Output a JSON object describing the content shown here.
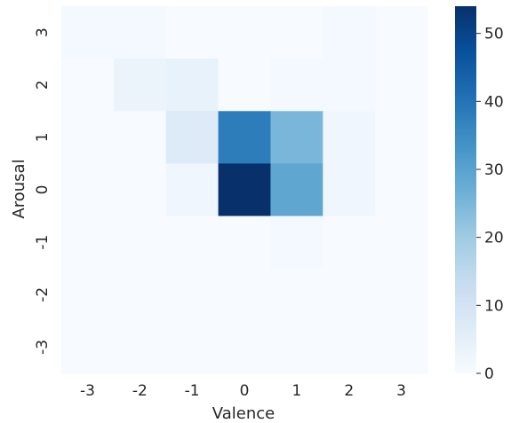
{
  "chart_data": {
    "type": "heatmap",
    "title": "",
    "xlabel": "Valence",
    "ylabel": "Arousal",
    "x_categories": [
      "-3",
      "-2",
      "-1",
      "0",
      "1",
      "2",
      "3"
    ],
    "y_categories": [
      "3",
      "2",
      "1",
      "0",
      "-1",
      "-2",
      "-3"
    ],
    "values": [
      [
        1,
        1,
        0,
        0,
        0,
        1,
        0
      ],
      [
        0,
        3,
        4,
        0,
        1,
        1,
        0
      ],
      [
        0,
        0,
        7,
        38,
        25,
        2,
        0
      ],
      [
        0,
        0,
        2,
        54,
        29,
        2,
        0
      ],
      [
        0,
        0,
        0,
        0,
        1,
        0,
        0
      ],
      [
        0,
        0,
        0,
        0,
        0,
        0,
        0
      ],
      [
        0,
        0,
        0,
        0,
        0,
        0,
        0
      ]
    ],
    "colorbar": {
      "min": 0,
      "max": 54,
      "ticks": [
        "0",
        "10",
        "20",
        "30",
        "40",
        "50"
      ],
      "colormap": "Blues"
    },
    "grid": false
  }
}
